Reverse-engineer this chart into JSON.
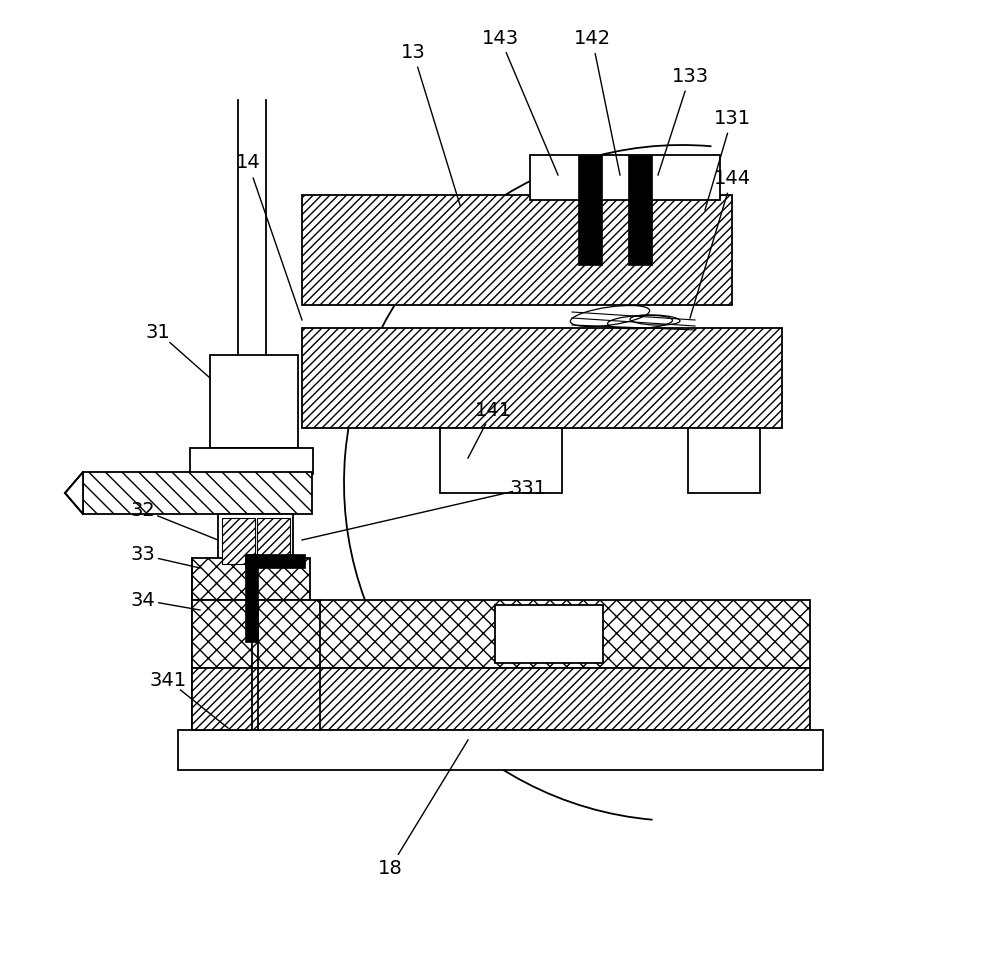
{
  "bg": "#ffffff",
  "lc": "#000000",
  "lw": 1.3,
  "annotations": [
    [
      "13",
      413,
      52,
      460,
      205
    ],
    [
      "14",
      248,
      163,
      302,
      320
    ],
    [
      "143",
      500,
      38,
      558,
      175
    ],
    [
      "142",
      592,
      38,
      620,
      175
    ],
    [
      "133",
      690,
      76,
      658,
      175
    ],
    [
      "131",
      732,
      118,
      705,
      210
    ],
    [
      "144",
      732,
      178,
      690,
      318
    ],
    [
      "141",
      493,
      410,
      468,
      458
    ],
    [
      "331",
      528,
      488,
      302,
      540
    ],
    [
      "31",
      158,
      332,
      210,
      378
    ],
    [
      "32",
      143,
      510,
      218,
      540
    ],
    [
      "33",
      143,
      555,
      200,
      568
    ],
    [
      "34",
      143,
      600,
      200,
      610
    ],
    [
      "341",
      168,
      680,
      228,
      728
    ],
    [
      "18",
      390,
      868,
      468,
      740
    ]
  ]
}
